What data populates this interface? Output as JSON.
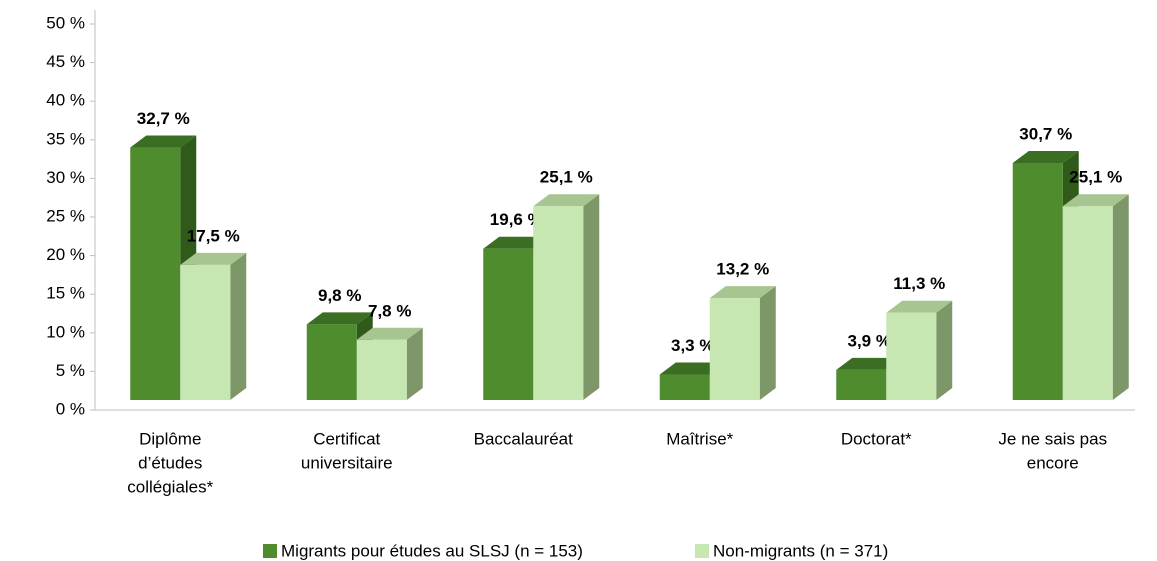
{
  "chart_data": {
    "type": "bar3d",
    "categories": [
      [
        "Diplôme",
        "d’études",
        "collégiales*"
      ],
      [
        "Certificat",
        "universitaire"
      ],
      [
        "Baccalauréat"
      ],
      [
        "Maîtrise*"
      ],
      [
        "Doctorat*"
      ],
      [
        "Je ne sais pas",
        "encore"
      ]
    ],
    "series": [
      {
        "name": "Migrants pour études au SLSJ (n = 153)",
        "color": "#4e8c2e",
        "side": "#2f5a19",
        "top": "#3b6e22",
        "values": [
          32.7,
          9.8,
          19.6,
          3.3,
          3.9,
          30.7
        ],
        "value_labels": [
          "32,7 %",
          "9,8 %",
          "19,6 %",
          "3,3 %",
          "3,9 %",
          "30,7 %"
        ]
      },
      {
        "name": "Non-migrants (n = 371)",
        "color": "#c6e7b1",
        "side": "#7e9769",
        "top": "#a6c591",
        "values": [
          17.5,
          7.8,
          25.1,
          13.2,
          11.3,
          25.1
        ],
        "value_labels": [
          "17,5 %",
          "7,8 %",
          "25,1 %",
          "13,2 %",
          "11,3 %",
          "25,1 %"
        ]
      }
    ],
    "ylim": [
      0,
      50
    ],
    "yticks": [
      {
        "value": 0,
        "label": "0 %"
      },
      {
        "value": 5,
        "label": "5 %"
      },
      {
        "value": 10,
        "label": "10 %"
      },
      {
        "value": 15,
        "label": "15 %"
      },
      {
        "value": 20,
        "label": "20 %"
      },
      {
        "value": 25,
        "label": "25 %"
      },
      {
        "value": 30,
        "label": "30 %"
      },
      {
        "value": 35,
        "label": "35 %"
      },
      {
        "value": 40,
        "label": "40 %"
      },
      {
        "value": 45,
        "label": "45 %"
      },
      {
        "value": 50,
        "label": "50 %"
      }
    ],
    "legend": "bottom"
  }
}
